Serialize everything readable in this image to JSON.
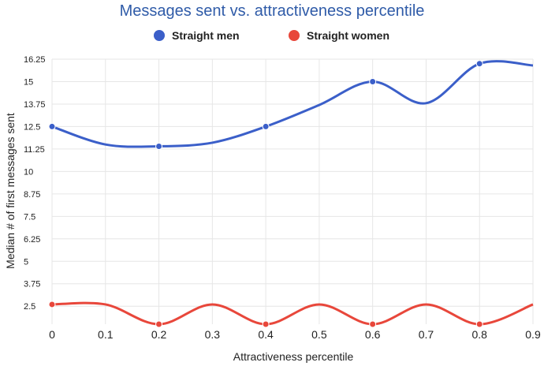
{
  "chart_data": {
    "type": "line",
    "title": "Messages sent vs. attractiveness percentile",
    "xlabel": "Attractiveness percentile",
    "ylabel": "Median # of first messages sent",
    "x": [
      0,
      0.1,
      0.2,
      0.3,
      0.4,
      0.5,
      0.6,
      0.7,
      0.8,
      0.9
    ],
    "x_ticks": [
      "0",
      "0.1",
      "0.2",
      "0.3",
      "0.4",
      "0.5",
      "0.6",
      "0.7",
      "0.8",
      "0.9"
    ],
    "xlim": [
      0,
      0.9
    ],
    "y_ticks": [
      "2.5",
      "3.75",
      "5",
      "6.25",
      "7.5",
      "8.75",
      "10",
      "11.25",
      "12.5",
      "13.75",
      "15",
      "16.25"
    ],
    "ylim": [
      1.5,
      16.25
    ],
    "grid": true,
    "legend_position": "top",
    "smooth": true,
    "series": [
      {
        "name": "Straight men",
        "color": "#3b5fc9",
        "values": [
          12.5,
          11.5,
          11.4,
          11.6,
          12.5,
          13.7,
          15,
          13.8,
          16,
          15.9
        ],
        "markers": [
          0,
          2,
          4,
          6,
          8
        ]
      },
      {
        "name": "Straight women",
        "color": "#e8473b",
        "values": [
          2.6,
          2.6,
          1.5,
          2.6,
          1.5,
          2.6,
          1.5,
          2.6,
          1.5,
          2.6
        ],
        "markers": [
          0,
          2,
          4,
          6,
          8
        ]
      }
    ]
  }
}
